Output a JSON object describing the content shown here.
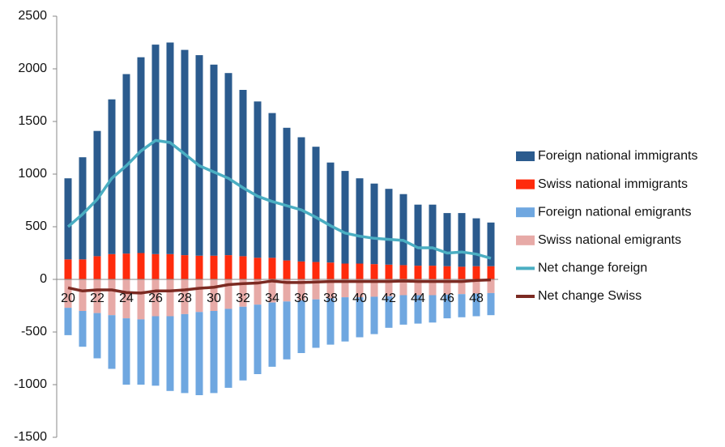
{
  "chart_data": {
    "type": "bar",
    "stacked": true,
    "categories": [
      "20",
      null,
      "22",
      null,
      "24",
      null,
      "26",
      null,
      "28",
      null,
      "30",
      null,
      "32",
      null,
      "34",
      null,
      "36",
      null,
      "38",
      null,
      "40",
      null,
      "42",
      null,
      "44",
      null,
      "46",
      null,
      "48",
      null
    ],
    "series": [
      {
        "name": "Foreign national immigrants",
        "color": "#2b5b8e",
        "values": [
          770,
          970,
          1190,
          1470,
          1705,
          1860,
          1990,
          2010,
          1950,
          1905,
          1815,
          1730,
          1580,
          1485,
          1375,
          1260,
          1180,
          1095,
          950,
          880,
          810,
          765,
          720,
          675,
          580,
          580,
          505,
          510,
          455,
          415
        ]
      },
      {
        "name": "Swiss national immigrants",
        "color": "#ff2b0c",
        "values": [
          190,
          190,
          220,
          240,
          245,
          250,
          240,
          240,
          230,
          225,
          225,
          230,
          220,
          205,
          205,
          180,
          170,
          165,
          160,
          150,
          150,
          145,
          140,
          135,
          130,
          130,
          125,
          120,
          125,
          125
        ]
      },
      {
        "name": "Foreign national emigrants",
        "color": "#6fa7e0",
        "values": [
          -260,
          -340,
          -430,
          -510,
          -630,
          -620,
          -660,
          -710,
          -750,
          -790,
          -780,
          -750,
          -700,
          -660,
          -610,
          -550,
          -500,
          -460,
          -440,
          -420,
          -380,
          -355,
          -300,
          -280,
          -270,
          -260,
          -225,
          -220,
          -215,
          -210
        ]
      },
      {
        "name": "Swiss national emigrants",
        "color": "#e7aaa7",
        "values": [
          -270,
          -300,
          -320,
          -340,
          -370,
          -380,
          -350,
          -350,
          -330,
          -310,
          -300,
          -280,
          -260,
          -240,
          -220,
          -210,
          -200,
          -190,
          -180,
          -170,
          -170,
          -165,
          -160,
          -150,
          -150,
          -150,
          -145,
          -140,
          -135,
          -130
        ]
      },
      {
        "name": "Net change foreign",
        "color": "#4aaec2",
        "type": "line",
        "values": [
          500,
          620,
          760,
          960,
          1080,
          1220,
          1320,
          1300,
          1190,
          1080,
          1020,
          960,
          870,
          790,
          740,
          700,
          660,
          590,
          510,
          440,
          410,
          390,
          380,
          370,
          300,
          300,
          250,
          260,
          240,
          200
        ]
      },
      {
        "name": "Net change Swiss",
        "color": "#7b2a22",
        "type": "line",
        "values": [
          -80,
          -110,
          -100,
          -100,
          -125,
          -130,
          -110,
          -110,
          -100,
          -85,
          -75,
          -50,
          -40,
          -35,
          -15,
          -30,
          -30,
          -25,
          -20,
          -20,
          -20,
          -20,
          -20,
          -15,
          -20,
          -20,
          -20,
          -20,
          -10,
          -5
        ]
      }
    ],
    "ylim": [
      -1500,
      2500
    ],
    "yticks": [
      -1500,
      -1000,
      -500,
      0,
      500,
      1000,
      1500,
      2000,
      2500
    ],
    "legend": "right"
  }
}
